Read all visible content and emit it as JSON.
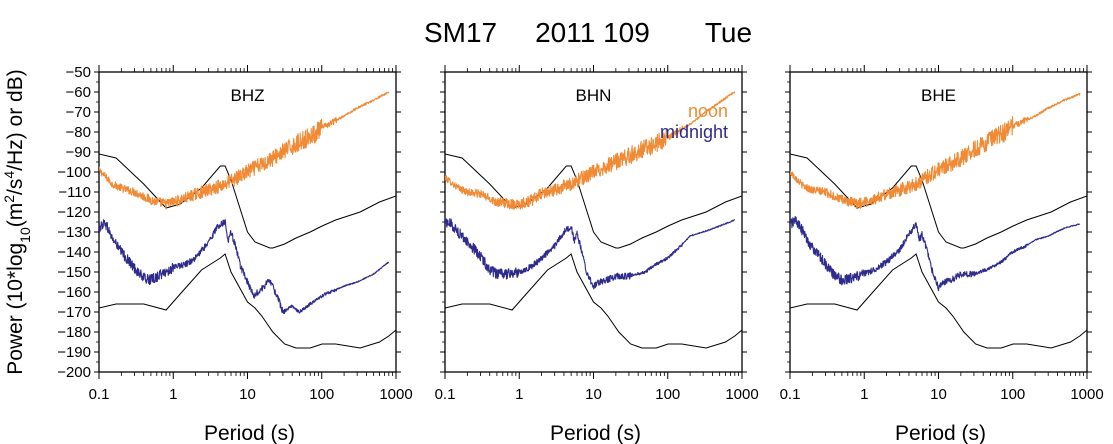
{
  "title": {
    "station": "SM17",
    "date": "2011 109",
    "day": "Tue"
  },
  "y_axis": {
    "label_prefix": "Power (10*log",
    "label_sub": "10",
    "label_mid1": "(m",
    "label_sup1": "2",
    "label_mid2": "/s",
    "label_sup2": "4",
    "label_suffix": "/Hz) or dB)",
    "ticks": [
      -50,
      -60,
      -70,
      -80,
      -90,
      -100,
      -110,
      -120,
      -130,
      -140,
      -150,
      -160,
      -170,
      -180,
      -190,
      -200
    ],
    "tick_labels": [
      "−50",
      "−60",
      "−70",
      "−80",
      "−90",
      "−100",
      "−110",
      "−120",
      "−130",
      "−140",
      "−150",
      "−160",
      "−170",
      "−180",
      "−190",
      "−200"
    ]
  },
  "x_axis": {
    "label": "Period (s)",
    "ticks": [
      0.1,
      1,
      10,
      100,
      1000
    ],
    "tick_labels": [
      "0.1",
      "1",
      "10",
      "100",
      "1000"
    ]
  },
  "legend": {
    "noon": "noon",
    "midnight": "midnight"
  },
  "colors": {
    "noon": "#f08a35",
    "midnight": "#2e2b8c",
    "model": "#000000"
  },
  "chart_data": [
    {
      "type": "line",
      "panel": "BHZ",
      "x_scale": "log",
      "xlim": [
        0.1,
        1000
      ],
      "ylim": [
        -200,
        -50
      ],
      "series": [
        {
          "name": "noon",
          "x": [
            0.1,
            0.12,
            0.15,
            0.2,
            0.3,
            0.5,
            0.8,
            1,
            1.5,
            2,
            3,
            5,
            8,
            10,
            20,
            30,
            50,
            80,
            100,
            200,
            300,
            500,
            800
          ],
          "y": [
            -99,
            -102,
            -106,
            -108,
            -110,
            -114,
            -116,
            -115,
            -113,
            -111,
            -109,
            -106,
            -102,
            -100,
            -94,
            -90,
            -85,
            -81,
            -78,
            -72,
            -68,
            -64,
            -60
          ]
        },
        {
          "name": "midnight",
          "x": [
            0.1,
            0.12,
            0.15,
            0.2,
            0.3,
            0.4,
            0.5,
            0.7,
            1,
            1.5,
            2,
            3,
            4,
            5,
            5.5,
            6,
            7,
            8,
            10,
            12,
            15,
            20,
            25,
            30,
            40,
            50,
            70,
            100,
            150,
            200,
            300,
            500,
            800
          ],
          "y": [
            -128,
            -125,
            -133,
            -140,
            -148,
            -153,
            -154,
            -151,
            -148,
            -146,
            -143,
            -135,
            -127,
            -125,
            -134,
            -130,
            -138,
            -147,
            -155,
            -162,
            -159,
            -154,
            -162,
            -170,
            -167,
            -170,
            -166,
            -162,
            -159,
            -157,
            -155,
            -151,
            -145
          ]
        }
      ],
      "models": [
        {
          "x": [
            0.1,
            0.17,
            0.4,
            0.8,
            1.24,
            2.4,
            4.3,
            5,
            6,
            10,
            12.6,
            20,
            21.9,
            31.6,
            45,
            70,
            101,
            154,
            328,
            600,
            1000
          ],
          "y": [
            -91,
            -93,
            -106,
            -118,
            -116,
            -108,
            -97,
            -97,
            -104,
            -130,
            -135,
            -138,
            -138,
            -136,
            -133,
            -130,
            -127,
            -124,
            -120,
            -115,
            -112
          ]
        },
        {
          "x": [
            0.1,
            0.17,
            0.4,
            0.8,
            1.24,
            2.4,
            4.3,
            5,
            6,
            10,
            12.6,
            15.6,
            21.9,
            31.6,
            45,
            70,
            101,
            154,
            328,
            600,
            800,
            1000
          ],
          "y": [
            -168,
            -166,
            -166,
            -169,
            -161,
            -149,
            -143,
            -141,
            -150,
            -165,
            -168,
            -172,
            -180,
            -186,
            -188,
            -188,
            -186,
            -186,
            -188,
            -185,
            -182,
            -179
          ]
        }
      ]
    },
    {
      "type": "line",
      "panel": "BHN",
      "x_scale": "log",
      "xlim": [
        0.1,
        1000
      ],
      "ylim": [
        -200,
        -50
      ],
      "series": [
        {
          "name": "noon",
          "x": [
            0.1,
            0.12,
            0.15,
            0.2,
            0.3,
            0.5,
            0.8,
            1,
            1.5,
            2,
            3,
            5,
            8,
            10,
            20,
            30,
            50,
            80,
            100,
            200,
            300,
            500,
            800
          ],
          "y": [
            -103,
            -105,
            -108,
            -110,
            -111,
            -115,
            -116,
            -116,
            -114,
            -111,
            -109,
            -106,
            -102,
            -100,
            -95,
            -92,
            -88,
            -85,
            -83,
            -76,
            -71,
            -65,
            -60
          ]
        },
        {
          "name": "midnight",
          "x": [
            0.1,
            0.12,
            0.15,
            0.2,
            0.3,
            0.4,
            0.5,
            0.7,
            1,
            1.5,
            2,
            3,
            4,
            5,
            5.5,
            6,
            7,
            8,
            10,
            12,
            15,
            20,
            30,
            50,
            70,
            100,
            150,
            200,
            300,
            500,
            800
          ],
          "y": [
            -125,
            -126,
            -130,
            -135,
            -142,
            -149,
            -151,
            -151,
            -150,
            -147,
            -143,
            -137,
            -130,
            -127,
            -135,
            -131,
            -140,
            -150,
            -157,
            -155,
            -154,
            -152,
            -152,
            -150,
            -146,
            -143,
            -137,
            -132,
            -130,
            -127,
            -124
          ]
        }
      ],
      "models": [
        {
          "x": [
            0.1,
            0.17,
            0.4,
            0.8,
            1.24,
            2.4,
            4.3,
            5,
            6,
            10,
            12.6,
            20,
            21.9,
            31.6,
            45,
            70,
            101,
            154,
            328,
            600,
            1000
          ],
          "y": [
            -91,
            -93,
            -106,
            -118,
            -116,
            -108,
            -97,
            -97,
            -104,
            -130,
            -135,
            -138,
            -138,
            -136,
            -133,
            -130,
            -127,
            -124,
            -120,
            -115,
            -112
          ]
        },
        {
          "x": [
            0.1,
            0.17,
            0.4,
            0.8,
            1.24,
            2.4,
            4.3,
            5,
            6,
            10,
            12.6,
            15.6,
            21.9,
            31.6,
            45,
            70,
            101,
            154,
            328,
            600,
            800,
            1000
          ],
          "y": [
            -168,
            -166,
            -166,
            -169,
            -161,
            -149,
            -143,
            -141,
            -150,
            -165,
            -168,
            -172,
            -180,
            -186,
            -188,
            -188,
            -186,
            -186,
            -188,
            -185,
            -182,
            -179
          ]
        }
      ]
    },
    {
      "type": "line",
      "panel": "BHE",
      "x_scale": "log",
      "xlim": [
        0.1,
        1000
      ],
      "ylim": [
        -200,
        -50
      ],
      "series": [
        {
          "name": "noon",
          "x": [
            0.1,
            0.12,
            0.15,
            0.2,
            0.3,
            0.5,
            0.8,
            1,
            1.5,
            2,
            3,
            5,
            8,
            10,
            20,
            30,
            50,
            80,
            100,
            200,
            300,
            500,
            800
          ],
          "y": [
            -100,
            -103,
            -107,
            -109,
            -110,
            -114,
            -116,
            -115,
            -113,
            -111,
            -109,
            -106,
            -101,
            -99,
            -93,
            -89,
            -84,
            -80,
            -77,
            -72,
            -68,
            -64,
            -61
          ]
        },
        {
          "name": "midnight",
          "x": [
            0.1,
            0.12,
            0.15,
            0.2,
            0.3,
            0.4,
            0.5,
            0.7,
            1,
            1.5,
            2,
            3,
            4,
            5,
            5.5,
            6,
            7,
            8,
            10,
            12,
            15,
            20,
            30,
            50,
            70,
            100,
            150,
            200,
            300,
            500,
            800
          ],
          "y": [
            -126,
            -124,
            -130,
            -138,
            -146,
            -152,
            -154,
            -153,
            -151,
            -148,
            -145,
            -139,
            -131,
            -126,
            -134,
            -131,
            -139,
            -148,
            -158,
            -155,
            -154,
            -151,
            -151,
            -148,
            -145,
            -140,
            -137,
            -134,
            -132,
            -128,
            -126
          ]
        }
      ],
      "models": [
        {
          "x": [
            0.1,
            0.17,
            0.4,
            0.8,
            1.24,
            2.4,
            4.3,
            5,
            6,
            10,
            12.6,
            20,
            21.9,
            31.6,
            45,
            70,
            101,
            154,
            328,
            600,
            1000
          ],
          "y": [
            -91,
            -93,
            -106,
            -118,
            -116,
            -108,
            -97,
            -97,
            -104,
            -130,
            -135,
            -138,
            -138,
            -136,
            -133,
            -130,
            -127,
            -124,
            -120,
            -115,
            -112
          ]
        },
        {
          "x": [
            0.1,
            0.17,
            0.4,
            0.8,
            1.24,
            2.4,
            4.3,
            5,
            6,
            10,
            12.6,
            15.6,
            21.9,
            31.6,
            45,
            70,
            101,
            154,
            328,
            600,
            800,
            1000
          ],
          "y": [
            -168,
            -166,
            -166,
            -169,
            -161,
            -149,
            -143,
            -141,
            -150,
            -165,
            -168,
            -172,
            -180,
            -186,
            -188,
            -188,
            -186,
            -186,
            -188,
            -185,
            -182,
            -179
          ]
        }
      ]
    }
  ]
}
